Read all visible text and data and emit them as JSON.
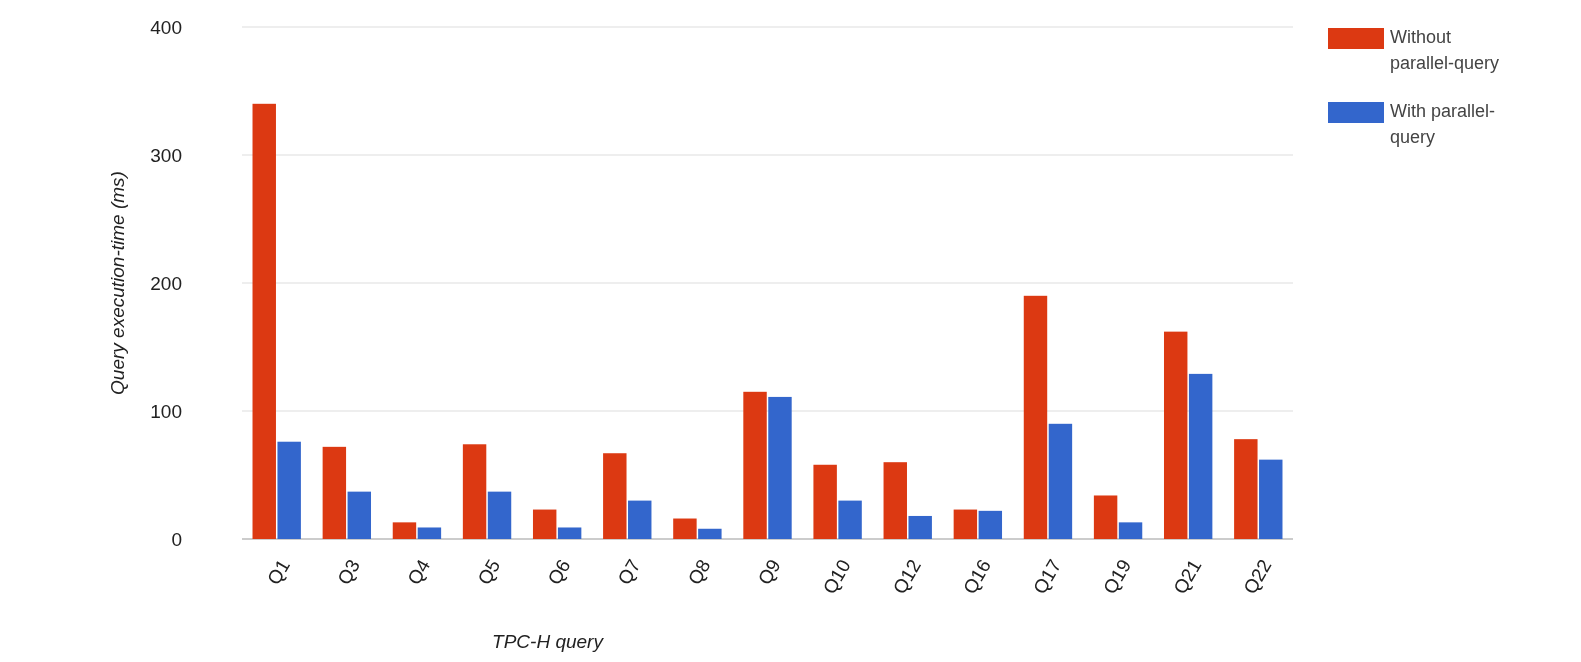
{
  "chart_data": {
    "type": "bar",
    "xlabel": "TPC-H query",
    "ylabel": "Query execution-time (ms)",
    "categories": [
      "Q1",
      "Q3",
      "Q4",
      "Q5",
      "Q6",
      "Q7",
      "Q8",
      "Q9",
      "Q10",
      "Q12",
      "Q16",
      "Q17",
      "Q19",
      "Q21",
      "Q22"
    ],
    "series": [
      {
        "name": "Without parallel-query",
        "color": "#dc3912",
        "values": [
          340,
          72,
          13,
          74,
          23,
          67,
          16,
          115,
          58,
          60,
          23,
          190,
          34,
          162,
          78
        ]
      },
      {
        "name": "With parallel-query",
        "color": "#3366cc",
        "values": [
          76,
          37,
          9,
          37,
          9,
          30,
          8,
          111,
          30,
          18,
          22,
          90,
          13,
          129,
          62
        ]
      }
    ],
    "ylim": [
      0,
      400
    ],
    "yticks": [
      0,
      100,
      200,
      300,
      400
    ],
    "grid": "y",
    "legend": "top right"
  }
}
